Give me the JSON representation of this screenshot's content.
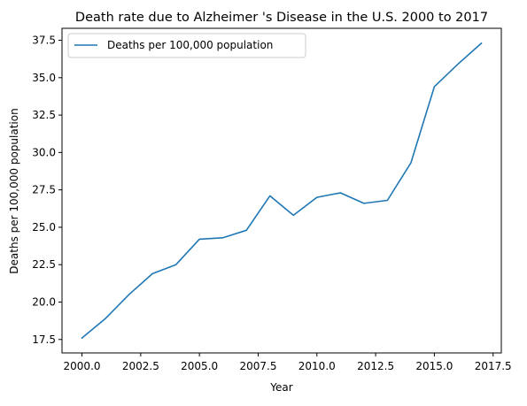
{
  "chart_data": {
    "type": "line",
    "title": "Death rate due to Alzheimer 's Disease in the U.S. 2000 to 2017",
    "xlabel": "Year",
    "ylabel": "Deaths per 100,000 population",
    "x": [
      2000,
      2001,
      2002,
      2003,
      2004,
      2005,
      2006,
      2007,
      2008,
      2009,
      2010,
      2011,
      2012,
      2013,
      2014,
      2015,
      2016,
      2017
    ],
    "series": [
      {
        "name": "Deaths per 100,000 population",
        "values": [
          17.6,
          18.9,
          20.5,
          21.9,
          22.5,
          24.2,
          24.3,
          24.8,
          27.1,
          25.8,
          27.0,
          27.3,
          26.6,
          26.8,
          29.3,
          34.4,
          35.9,
          37.3
        ],
        "color": "#1f77b4"
      }
    ],
    "xlim": [
      1999.15,
      2017.85
    ],
    "ylim": [
      16.6,
      38.3
    ],
    "x_ticks": [
      2000.0,
      2002.5,
      2005.0,
      2007.5,
      2010.0,
      2012.5,
      2015.0,
      2017.5
    ],
    "x_tick_labels": [
      "2000.0",
      "2002.5",
      "2005.0",
      "2007.5",
      "2010.0",
      "2012.5",
      "2015.0",
      "2017.5"
    ],
    "y_ticks": [
      17.5,
      20.0,
      22.5,
      25.0,
      27.5,
      30.0,
      32.5,
      35.0,
      37.5
    ],
    "y_tick_labels": [
      "17.5",
      "20.0",
      "22.5",
      "25.0",
      "27.5",
      "30.0",
      "32.5",
      "35.0",
      "37.5"
    ],
    "grid": false,
    "legend": "upper-left"
  }
}
